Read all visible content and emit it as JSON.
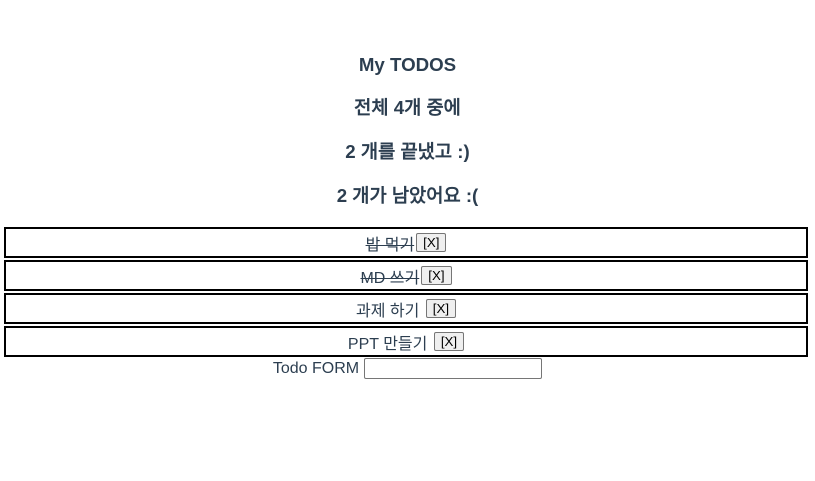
{
  "headings": {
    "title": "My TODOS",
    "total": "전체 4개 중에",
    "done": "2 개를 끝냈고 :)",
    "left": "2 개가 남았어요 :("
  },
  "todos": [
    {
      "text": "밥 먹기",
      "done": true,
      "delete_label": "[X]"
    },
    {
      "text": "MD 쓰기",
      "done": true,
      "delete_label": "[X]"
    },
    {
      "text": "과제 하기",
      "done": false,
      "delete_label": "[X]"
    },
    {
      "text": "PPT 만들기",
      "done": false,
      "delete_label": "[X]"
    }
  ],
  "form": {
    "label": "Todo FORM",
    "value": "",
    "placeholder": ""
  },
  "colors": {
    "text": "#2c3e50",
    "border": "#000000"
  }
}
